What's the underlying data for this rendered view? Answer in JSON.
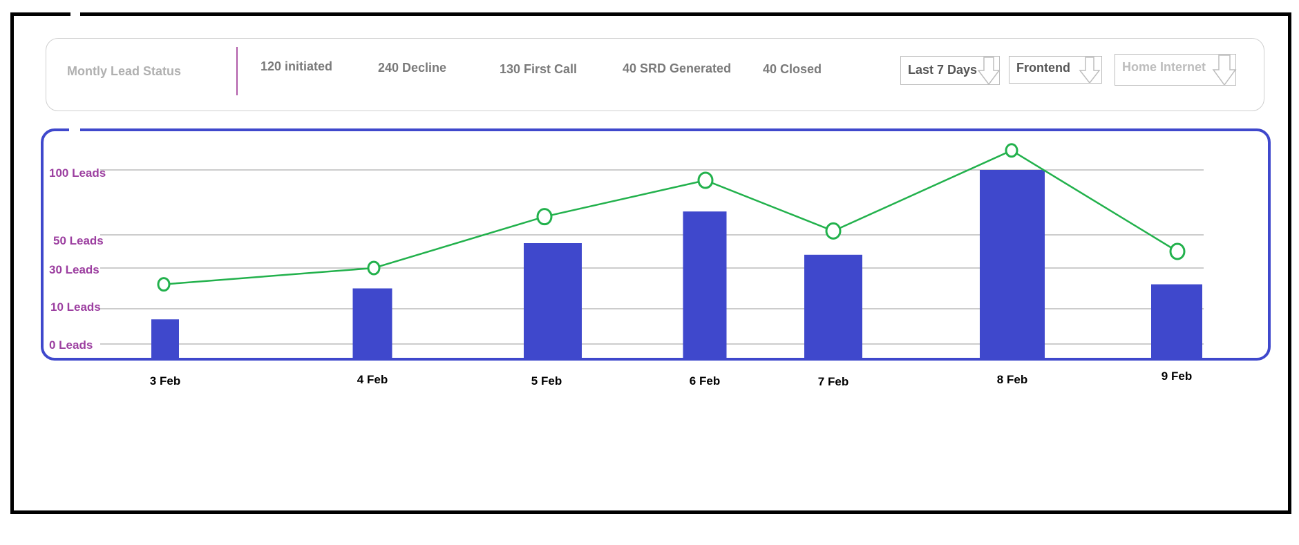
{
  "header": {
    "title": "Montly Lead Status",
    "stats": [
      "120 initiated",
      "240 Decline",
      "130 First Call",
      "40 SRD Generated",
      "40 Closed"
    ]
  },
  "filters": {
    "period": "Last 7 Days",
    "team": "Frontend",
    "product": "Home Internet"
  },
  "colors": {
    "bar": "#3f48cc",
    "line": "#22b14c",
    "frame": "#3f48cc",
    "tick": "#9c3fa0"
  },
  "chart_data": {
    "type": "bar",
    "categories": [
      "3 Feb",
      "4 Feb",
      "5 Feb",
      "6 Feb",
      "7 Feb",
      "8 Feb",
      "9 Feb"
    ],
    "series": [
      {
        "type": "bar",
        "values": [
          7,
          20,
          45,
          68,
          38,
          100,
          22
        ]
      },
      {
        "type": "line",
        "values": [
          22,
          30,
          64,
          92,
          53,
          115,
          40
        ]
      }
    ],
    "ytick_labels": [
      "0 Leads",
      "10 Leads",
      "30 Leads",
      "50 Leads",
      "100 Leads"
    ],
    "ytick_values": [
      0,
      10,
      30,
      50,
      100
    ],
    "grid": true,
    "legend": "none"
  }
}
